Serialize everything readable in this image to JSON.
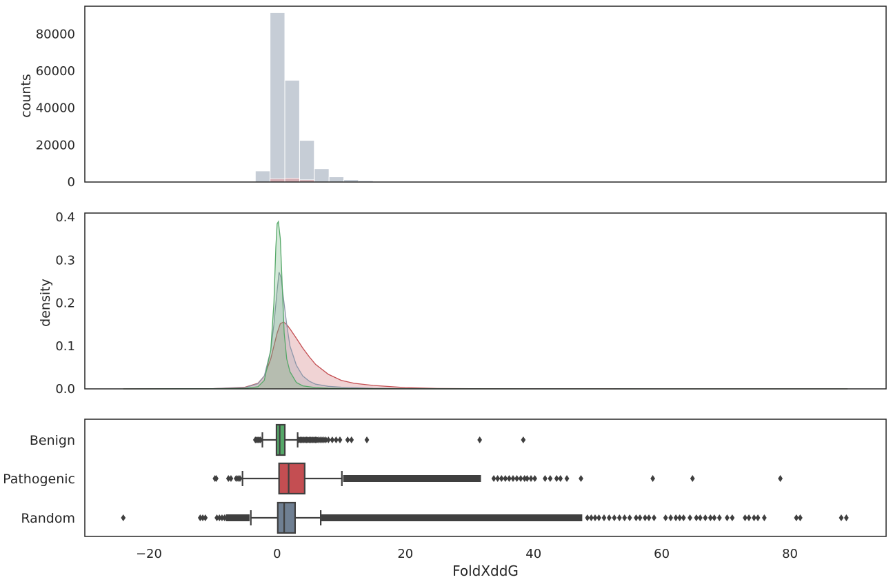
{
  "colors": {
    "benign": "#55a868",
    "pathogenic": "#c44e52",
    "random": "#8c96a8",
    "random_box": "#6f7f92",
    "hist_random": "#c6cdd6",
    "hist_pathogenic": "#d8a8ad",
    "axis": "#262626",
    "whisker": "#3f3f3f"
  },
  "chart_data": [
    {
      "type": "bar",
      "subtype": "histogram",
      "ylabel": "counts",
      "xlim": [
        -30,
        95
      ],
      "ylim": [
        0,
        95000
      ],
      "yticks": [
        0,
        20000,
        40000,
        60000,
        80000
      ],
      "bins": [
        {
          "x0": -3.4,
          "x1": -1.1,
          "count": 6000
        },
        {
          "x0": -1.1,
          "x1": 1.2,
          "count": 91500
        },
        {
          "x0": 1.2,
          "x1": 3.5,
          "count": 55000
        },
        {
          "x0": 3.5,
          "x1": 5.8,
          "count": 22500
        },
        {
          "x0": 5.8,
          "x1": 8.1,
          "count": 7200
        },
        {
          "x0": 8.1,
          "x1": 10.4,
          "count": 2800
        },
        {
          "x0": 10.4,
          "x1": 12.7,
          "count": 1300
        },
        {
          "x0": 12.7,
          "x1": 15.0,
          "count": 700
        },
        {
          "x0": 15.0,
          "x1": 17.3,
          "count": 350
        },
        {
          "x0": 17.3,
          "x1": 19.6,
          "count": 150
        }
      ],
      "overlay_bins": [
        {
          "x0": -1.1,
          "x1": 1.2,
          "count": 1800
        },
        {
          "x0": 1.2,
          "x1": 3.5,
          "count": 2100
        },
        {
          "x0": 3.5,
          "x1": 5.8,
          "count": 1200
        }
      ]
    },
    {
      "type": "area",
      "subtype": "kde",
      "ylabel": "density",
      "xlim": [
        -30,
        95
      ],
      "ylim": [
        0,
        0.41
      ],
      "yticks": [
        0.0,
        0.1,
        0.2,
        0.3,
        0.4
      ],
      "series": [
        {
          "color_key": "pathogenic",
          "x": [
            -24,
            -10,
            -5,
            -3,
            -2,
            -1,
            -0.5,
            0,
            0.5,
            1,
            1.5,
            2,
            3,
            4,
            5,
            6,
            8,
            10,
            12,
            15,
            18,
            20,
            25,
            30,
            40,
            50,
            60,
            89
          ],
          "y": [
            0,
            0.0005,
            0.004,
            0.013,
            0.03,
            0.07,
            0.1,
            0.13,
            0.152,
            0.156,
            0.15,
            0.14,
            0.118,
            0.095,
            0.075,
            0.057,
            0.034,
            0.02,
            0.013,
            0.008,
            0.005,
            0.003,
            0.001,
            0.0005,
            0.0002,
            0.0001,
            0,
            0
          ]
        },
        {
          "color_key": "random",
          "x": [
            -24,
            -10,
            -5,
            -3,
            -2,
            -1,
            -0.5,
            0,
            0.3,
            0.6,
            1,
            1.5,
            2,
            3,
            4,
            5,
            6,
            8,
            10,
            15,
            20,
            30,
            40,
            60,
            89
          ],
          "y": [
            0,
            0.0005,
            0.003,
            0.012,
            0.03,
            0.09,
            0.15,
            0.23,
            0.272,
            0.26,
            0.21,
            0.15,
            0.1,
            0.055,
            0.03,
            0.018,
            0.011,
            0.006,
            0.004,
            0.0015,
            0.0007,
            0.0002,
            0.0001,
            0,
            0
          ]
        },
        {
          "color_key": "benign",
          "x": [
            -24,
            -10,
            -5,
            -3,
            -2,
            -1,
            -0.5,
            -0.2,
            0,
            0.2,
            0.5,
            0.8,
            1.1,
            1.5,
            2,
            3,
            4,
            6,
            8,
            12,
            20,
            40,
            89
          ],
          "y": [
            0,
            0.0002,
            0.001,
            0.005,
            0.02,
            0.09,
            0.2,
            0.33,
            0.385,
            0.39,
            0.35,
            0.24,
            0.13,
            0.07,
            0.04,
            0.015,
            0.007,
            0.003,
            0.0015,
            0.0005,
            0.0001,
            0,
            0
          ]
        }
      ]
    },
    {
      "type": "box",
      "xlabel": "FoldXddG",
      "xlim": [
        -30,
        95
      ],
      "xticks": [
        -20,
        0,
        20,
        40,
        60,
        80
      ],
      "categories": [
        "Benign",
        "Pathogenic",
        "Random"
      ],
      "boxes": [
        {
          "label": "Benign",
          "color_key": "benign",
          "q1": -0.1,
          "median": 0.4,
          "q3": 1.2,
          "whisker_low": -2.3,
          "whisker_high": 3.2,
          "outliers": [
            -3.4,
            -3.2,
            -3.0,
            -2.8,
            -2.6,
            3.4,
            3.6,
            3.8,
            4.0,
            4.2,
            4.4,
            4.6,
            4.8,
            5.0,
            5.2,
            5.4,
            5.6,
            5.8,
            6.0,
            6.2,
            6.4,
            6.7,
            7.0,
            7.3,
            7.6,
            8.0,
            8.6,
            9.2,
            9.8,
            11.0,
            11.6,
            14.0,
            31.6,
            38.4
          ]
        },
        {
          "label": "Pathogenic",
          "color_key": "pathogenic",
          "q1": 0.3,
          "median": 1.8,
          "q3": 4.3,
          "whisker_low": -5.4,
          "whisker_high": 10.1,
          "outliers": [
            -9.7,
            -9.5,
            -7.6,
            -7.2,
            -6.4,
            -6.1,
            -5.8,
            41.8,
            42.6,
            43.6,
            44.2,
            45.2,
            47.4,
            58.6,
            64.8,
            78.5
          ],
          "dense_outliers": [
            10.3,
            31.8
          ],
          "sparse_outliers": [
            33.8,
            34.4,
            35.0,
            35.6,
            36.2,
            36.8,
            37.4,
            38.0,
            38.6,
            39.0,
            39.6,
            40.2
          ]
        },
        {
          "label": "Random",
          "color_key": "random_box",
          "q1": 0.1,
          "median": 1.1,
          "q3": 2.8,
          "whisker_low": -4.1,
          "whisker_high": 6.8,
          "outliers": [
            -24.0,
            -12.0,
            -11.6,
            -11.2,
            -9.4,
            -9.0,
            -8.6,
            -8.2,
            48.4,
            49.0,
            49.6,
            50.2,
            51.0,
            51.8,
            52.6,
            53.4,
            54.2,
            55.0,
            56.0,
            56.6,
            57.4,
            58.0,
            58.8,
            60.6,
            61.4,
            62.2,
            62.8,
            63.4,
            64.4,
            65.4,
            66.0,
            66.8,
            67.6,
            68.2,
            69.0,
            70.2,
            71.0,
            73.0,
            73.6,
            74.4,
            75.0,
            76.0,
            81.0,
            81.6,
            88.0,
            88.8
          ],
          "dense_outliers": [
            6.9,
            47.6
          ],
          "dense_outliers_low": [
            -8.0,
            -4.3
          ]
        }
      ]
    }
  ]
}
